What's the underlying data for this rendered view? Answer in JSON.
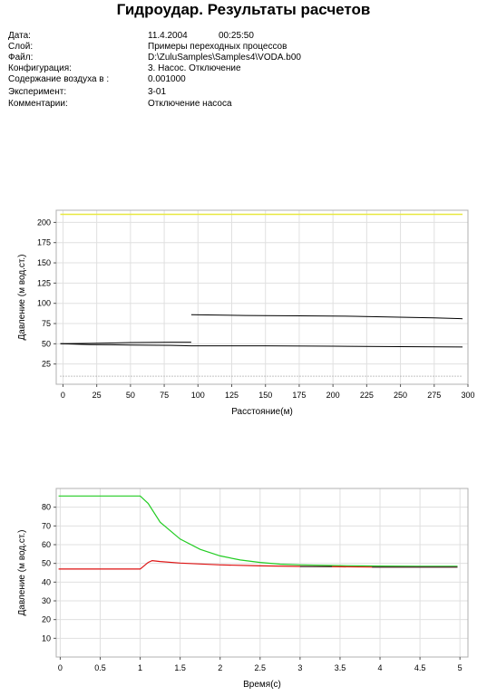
{
  "title": "Гидроудар. Результаты расчетов",
  "info": [
    {
      "label": "Дата:",
      "value": "11.4.2004",
      "extra": "00:25:50"
    },
    {
      "label": "Слой:",
      "value": "Примеры переходных процессов"
    },
    {
      "label": "Файл:",
      "value": "D:\\ZuluSamples\\Samples4\\VODA.b00"
    },
    {
      "label": "Конфигурация:",
      "value": "3. Насос. Отключение"
    },
    {
      "label": "Содержание воздуха в :",
      "value": "0.001000"
    },
    {
      "label": "Эксперимент:",
      "value": "3-01"
    },
    {
      "label": "Комментарии:",
      "value": "Отключение насоса"
    }
  ],
  "chart_data": [
    {
      "type": "line",
      "xlabel": "Расстояние(м)",
      "ylabel": "Давление (м вод.ст.)",
      "xlim": [
        -5,
        300
      ],
      "ylim": [
        0,
        215
      ],
      "xticks": [
        0,
        25,
        50,
        75,
        100,
        125,
        150,
        175,
        200,
        225,
        250,
        275,
        300
      ],
      "yticks": [
        25,
        50,
        75,
        100,
        125,
        150,
        175,
        200
      ],
      "grid": true,
      "series": [
        {
          "color": "#e8e840",
          "width": 1.5,
          "points": [
            [
              -2,
              210
            ],
            [
              296,
              210
            ]
          ]
        },
        {
          "color": "#000000",
          "width": 1,
          "points": [
            [
              95,
              86
            ],
            [
              135,
              85
            ],
            [
              175,
              84.5
            ],
            [
              215,
              84
            ],
            [
              245,
              83
            ],
            [
              275,
              82
            ],
            [
              296,
              81
            ]
          ]
        },
        {
          "color": "#000000",
          "width": 1,
          "points": [
            [
              -2,
              50
            ],
            [
              20,
              50.5
            ],
            [
              50,
              51.5
            ],
            [
              80,
              52
            ],
            [
              95,
              52
            ]
          ]
        },
        {
          "color": "#000000",
          "width": 1,
          "points": [
            [
              -2,
              50
            ],
            [
              20,
              49
            ],
            [
              50,
              48.5
            ],
            [
              80,
              48
            ],
            [
              95,
              47.5
            ],
            [
              150,
              47.5
            ],
            [
              200,
              47
            ],
            [
              250,
              46.5
            ],
            [
              296,
              46
            ]
          ]
        },
        {
          "color": "#888888",
          "width": 1,
          "dash": "1,2",
          "points": [
            [
              -2,
              10
            ],
            [
              296,
              10
            ]
          ]
        }
      ]
    },
    {
      "type": "line",
      "xlabel": "Время(с)",
      "ylabel": "Давление (м вод.ст.)",
      "xlim": [
        -0.05,
        5.1
      ],
      "ylim": [
        0,
        90
      ],
      "xticks": [
        0,
        0.5,
        1,
        1.5,
        2,
        2.5,
        3,
        3.5,
        4,
        4.5,
        5
      ],
      "yticks": [
        10,
        20,
        30,
        40,
        50,
        60,
        70,
        80
      ],
      "grid": true,
      "series": [
        {
          "color": "#22cc22",
          "width": 1.2,
          "points": [
            [
              -0.02,
              86
            ],
            [
              1.0,
              86
            ],
            [
              1.1,
              82
            ],
            [
              1.25,
              72
            ],
            [
              1.5,
              63
            ],
            [
              1.75,
              57.5
            ],
            [
              2.0,
              54
            ],
            [
              2.25,
              51.8
            ],
            [
              2.5,
              50.5
            ],
            [
              2.75,
              49.6
            ],
            [
              3.0,
              49.2
            ],
            [
              3.5,
              48.8
            ],
            [
              4.0,
              48.6
            ],
            [
              4.5,
              48.5
            ],
            [
              4.97,
              48.5
            ]
          ]
        },
        {
          "color": "#dd1111",
          "width": 1.2,
          "points": [
            [
              -0.02,
              47
            ],
            [
              1.0,
              47
            ],
            [
              1.1,
              50.5
            ],
            [
              1.15,
              51.5
            ],
            [
              1.25,
              51
            ],
            [
              1.5,
              50.2
            ],
            [
              2.0,
              49.2
            ],
            [
              2.5,
              48.7
            ],
            [
              3.0,
              48.4
            ],
            [
              3.5,
              48.2
            ],
            [
              4.0,
              48
            ],
            [
              4.5,
              48
            ],
            [
              4.97,
              48
            ]
          ]
        },
        {
          "color": "#333333",
          "width": 1.2,
          "points": [
            [
              3.0,
              48.3
            ],
            [
              3.4,
              48.3
            ]
          ]
        },
        {
          "color": "#333333",
          "width": 1.2,
          "points": [
            [
              3.9,
              48
            ],
            [
              4.97,
              48
            ]
          ]
        }
      ]
    }
  ]
}
